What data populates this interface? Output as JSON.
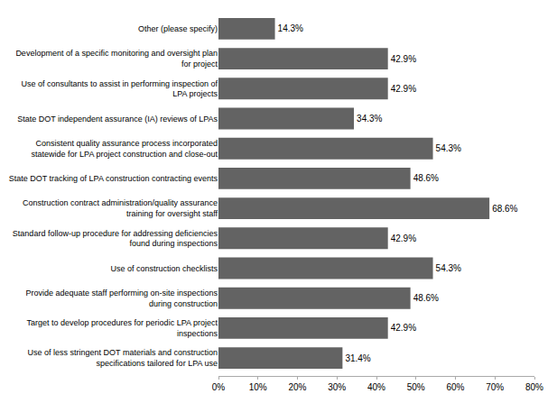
{
  "chart_data": {
    "type": "bar",
    "orientation": "horizontal",
    "categories": [
      "Use of less stringent DOT materials and construction\nspecifications tailored for LPA use",
      "Target to develop procedures for periodic LPA project\ninspections",
      "Provide adequate staff performing on-site inspections\nduring construction",
      "Use of construction checklists",
      "Standard follow-up procedure for addressing deficiencies\nfound during inspections",
      "Construction contract administration/quality assurance\ntraining for oversight staff",
      "State DOT tracking of LPA construction contracting events",
      "Consistent quality assurance process incorporated\nstatewide for LPA project construction and close-out",
      "State DOT independent assurance (IA) reviews of LPAs",
      "Use of consultants to assist in performing inspection of\nLPA projects",
      "Development of a specific monitoring and oversight plan\nfor project",
      "Other (please specify)"
    ],
    "values": [
      31.4,
      42.9,
      48.6,
      54.3,
      42.9,
      68.6,
      48.6,
      54.3,
      34.3,
      42.9,
      42.9,
      14.3
    ],
    "value_labels": [
      "31.4%",
      "42.9%",
      "48.6%",
      "54.3%",
      "42.9%",
      "68.6%",
      "48.6%",
      "54.3%",
      "34.3%",
      "42.9%",
      "42.9%",
      "14.3%"
    ],
    "data_labels": true,
    "color": "#636363",
    "xlim": [
      0,
      80
    ],
    "xticks": [
      {
        "value": 0,
        "label": "0%"
      },
      {
        "value": 10,
        "label": "10%"
      },
      {
        "value": 20,
        "label": "20%"
      },
      {
        "value": 30,
        "label": "30%"
      },
      {
        "value": 40,
        "label": "40%"
      },
      {
        "value": 50,
        "label": "50%"
      },
      {
        "value": 60,
        "label": "60%"
      },
      {
        "value": 70,
        "label": "70%"
      },
      {
        "value": 80,
        "label": "80%"
      }
    ],
    "grid": false
  }
}
